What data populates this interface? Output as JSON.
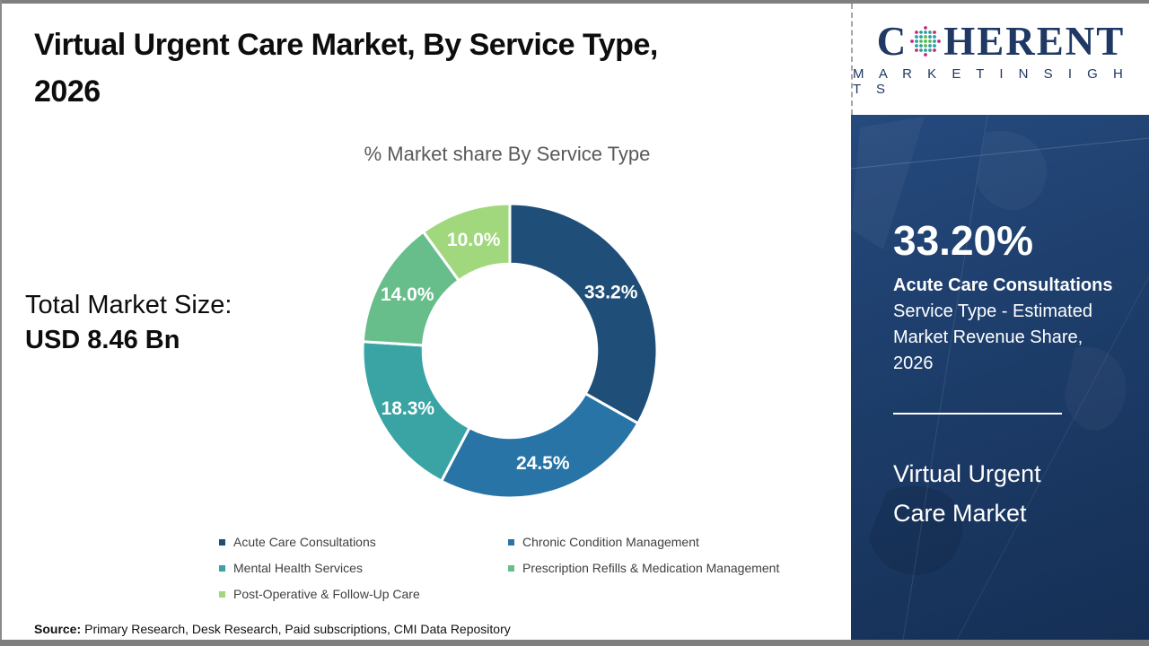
{
  "frame": {
    "top_bar_color": "#7f7f7f",
    "bottom_bar_color": "#7f7f7f"
  },
  "header": {
    "title_line1": "Virtual Urgent Care Market, By Service Type,",
    "title_line2": "2026"
  },
  "logo": {
    "prefix": "C",
    "suffix": "HERENT",
    "subtitle": "M A R K E T   I N S I G H T S",
    "brand_color": "#1F3864",
    "globe_colors": [
      "#c42a7c",
      "#2d9ea0",
      "#56b94e"
    ]
  },
  "left_panel": {
    "total_label": "Total Market Size:",
    "total_value": "USD 8.46 Bn"
  },
  "chart_data": {
    "type": "pie",
    "subtype": "donut",
    "title": "% Market share By Service Type",
    "categories": [
      "Acute Care Consultations",
      "Chronic Condition Management",
      "Mental Health Services",
      "Prescription Refills & Medication Management",
      "Post-Operative & Follow-Up Care"
    ],
    "values": [
      33.2,
      24.5,
      18.3,
      14.0,
      10.0
    ],
    "labels": [
      "33.2%",
      "24.5%",
      "18.3%",
      "14.0%",
      "10.0%"
    ],
    "colors": [
      "#1F4E79",
      "#2874A6",
      "#3AA3A3",
      "#67BE8B",
      "#A1D87E"
    ],
    "start_angle_deg": 0,
    "clockwise": true,
    "inner_radius_ratio": 0.59,
    "separator_color": "#ffffff",
    "label_color": "#ffffff",
    "legend_position": "bottom"
  },
  "sidebar": {
    "bg_color": "#1C3A66",
    "highlight_value": "33.20%",
    "highlight_title": "Acute Care Consultations",
    "highlight_lines": [
      "Service Type - Estimated",
      "Market Revenue Share,",
      "2026"
    ],
    "market_name_lines": [
      "Virtual Urgent",
      "Care Market"
    ]
  },
  "footer": {
    "source_label": "Source:",
    "source_text": "Primary Research, Desk Research, Paid subscriptions, CMI Data Repository"
  }
}
